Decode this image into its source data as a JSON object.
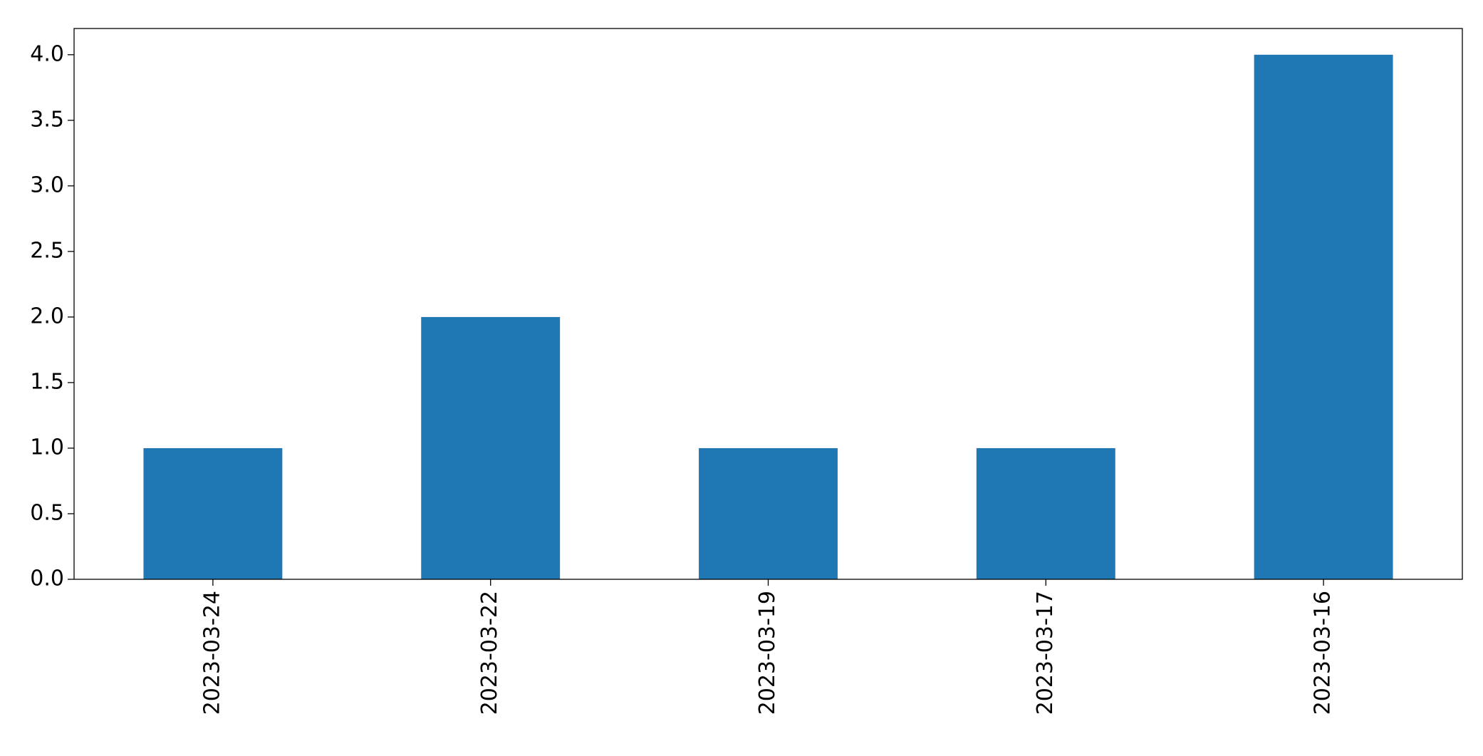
{
  "chart_data": {
    "type": "bar",
    "categories": [
      "2023-03-24",
      "2023-03-22",
      "2023-03-19",
      "2023-03-17",
      "2023-03-16"
    ],
    "values": [
      1,
      2,
      1,
      1,
      4
    ],
    "color": "#1f77b4",
    "ylim": [
      0,
      4.2
    ],
    "yticks": [
      {
        "value": 0,
        "label": "0.0"
      },
      0.5,
      {
        "value": 1,
        "label": "1.0"
      },
      1.5,
      {
        "value": 2,
        "label": "2.0"
      },
      2.5,
      {
        "value": 3,
        "label": "3.0"
      },
      3.5,
      {
        "value": 4,
        "label": "4.0"
      }
    ],
    "grid": false
  }
}
